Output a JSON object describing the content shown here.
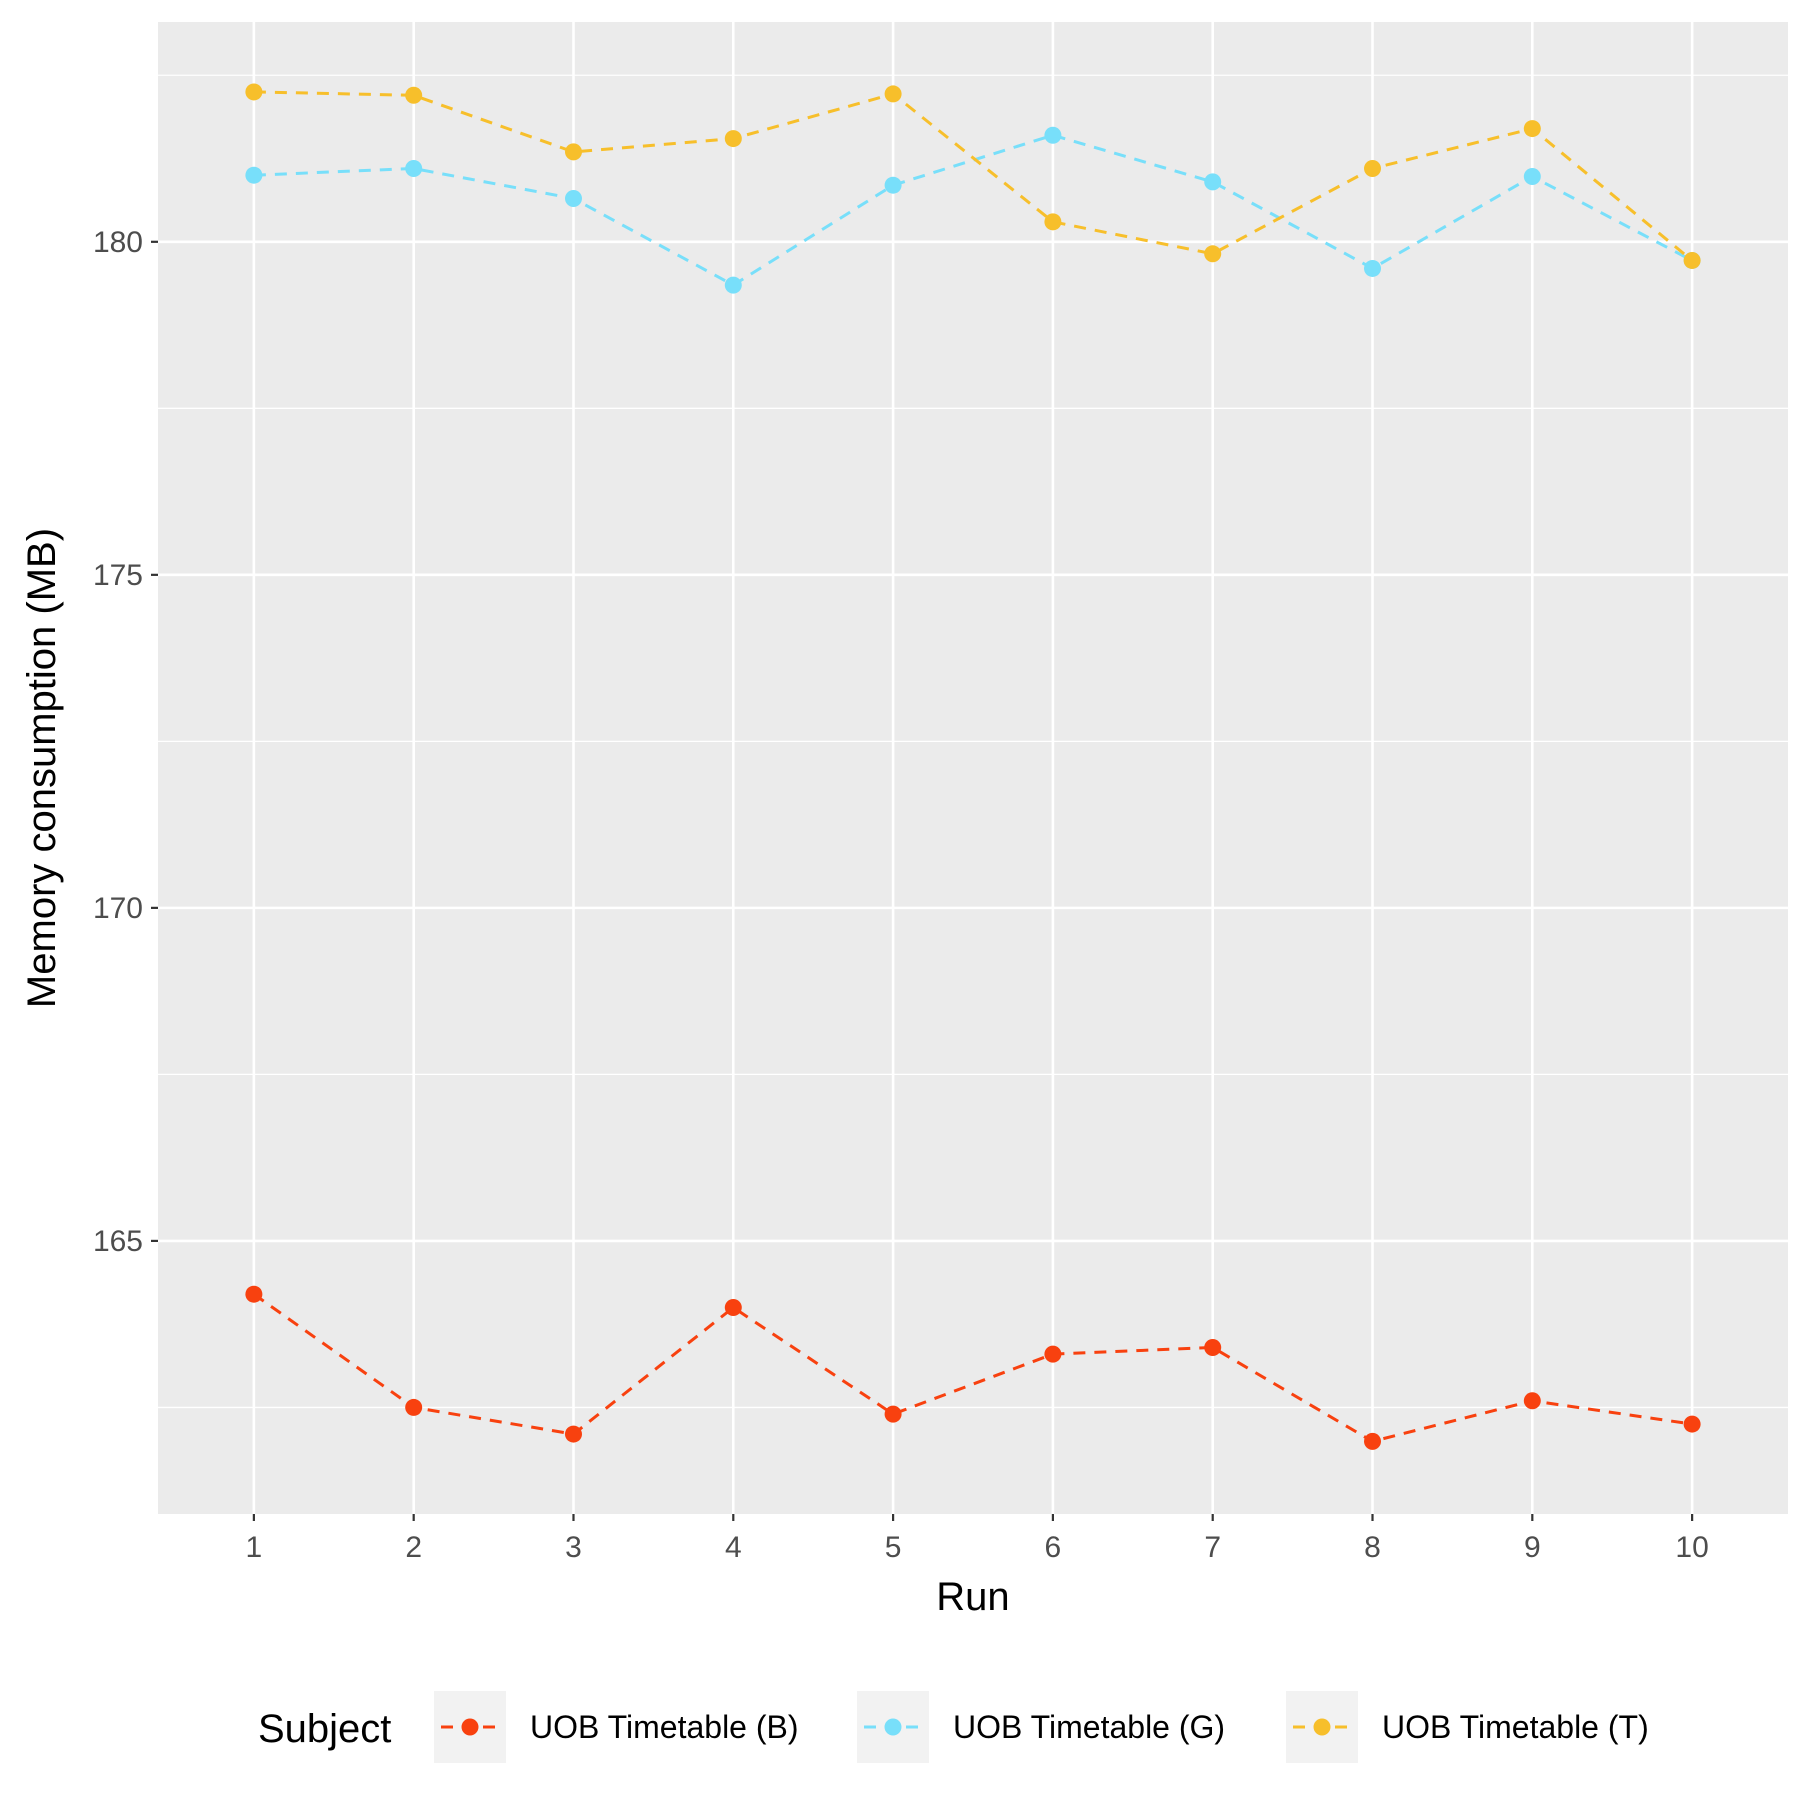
{
  "chart_data": {
    "type": "line",
    "title": "",
    "xlabel": "Run",
    "ylabel": "Memory consumption (MB)",
    "x": [
      1,
      2,
      3,
      4,
      5,
      6,
      7,
      8,
      9,
      10
    ],
    "x_tick_labels": [
      "1",
      "2",
      "3",
      "4",
      "5",
      "6",
      "7",
      "8",
      "9",
      "10"
    ],
    "xlim": [
      0.4,
      10.6
    ],
    "ylim": [
      160.9,
      183.3
    ],
    "y_ticks": [
      165,
      170,
      175,
      180
    ],
    "y_tick_labels": [
      "165",
      "170",
      "175",
      "180"
    ],
    "grid": true,
    "line_style": "dashed",
    "legend_position": "bottom",
    "legend_title": "Subject",
    "series": [
      {
        "name": "UOB Timetable (B)",
        "color": "#F8410F",
        "values": [
          164.2,
          162.5,
          162.1,
          164.0,
          162.4,
          163.3,
          163.4,
          161.99,
          162.6,
          162.25
        ]
      },
      {
        "name": "UOB Timetable (G)",
        "color": "#78DFFA",
        "values": [
          181.0,
          181.1,
          180.65,
          179.35,
          180.85,
          181.6,
          180.9,
          179.6,
          180.98,
          179.72
        ]
      },
      {
        "name": "UOB Timetable (T)",
        "color": "#F7BF2B",
        "values": [
          182.25,
          182.2,
          181.35,
          181.55,
          182.22,
          180.3,
          179.82,
          181.1,
          181.7,
          179.72
        ]
      }
    ]
  }
}
